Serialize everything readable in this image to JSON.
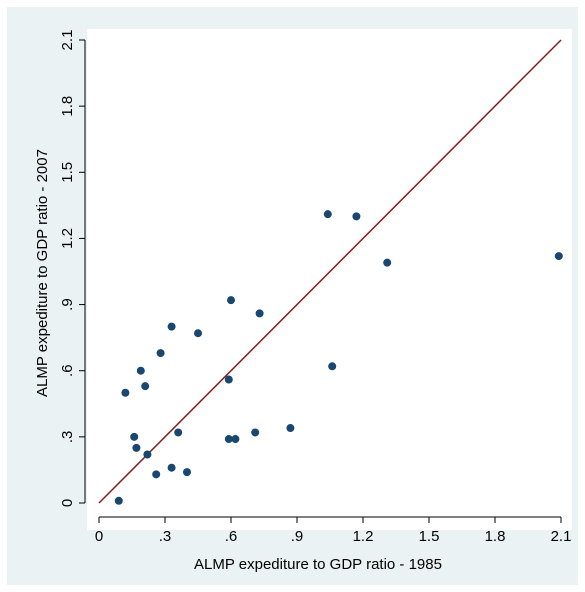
{
  "chart_data": {
    "type": "scatter",
    "title": "",
    "xlabel": "ALMP expediture to GDP ratio - 1985",
    "ylabel": "ALMP expediture to GDP ratio - 2007",
    "xlim": [
      0,
      2.1
    ],
    "ylim": [
      0,
      2.1
    ],
    "xticks": [
      0,
      0.3,
      0.6,
      0.9,
      1.2,
      1.5,
      1.8,
      2.1
    ],
    "xtick_labels": [
      "0",
      ".3",
      ".6",
      ".9",
      "1.2",
      "1.5",
      "1.8",
      "2.1"
    ],
    "yticks": [
      0,
      0.3,
      0.6,
      0.9,
      1.2,
      1.5,
      1.8,
      2.1
    ],
    "ytick_labels": [
      "0",
      ".3",
      ".6",
      ".9",
      "1.2",
      "1.5",
      "1.8",
      "2.1"
    ],
    "grid": false,
    "reference_line": {
      "type": "45-degree",
      "from": [
        0,
        0
      ],
      "to": [
        2.1,
        2.1
      ],
      "color": "#8b1a1a"
    },
    "marker_color": "#1a476f",
    "points": [
      {
        "x": 0.09,
        "y": 0.01
      },
      {
        "x": 0.12,
        "y": 0.5
      },
      {
        "x": 0.16,
        "y": 0.3
      },
      {
        "x": 0.17,
        "y": 0.25
      },
      {
        "x": 0.19,
        "y": 0.6
      },
      {
        "x": 0.21,
        "y": 0.53
      },
      {
        "x": 0.22,
        "y": 0.22
      },
      {
        "x": 0.26,
        "y": 0.13
      },
      {
        "x": 0.28,
        "y": 0.68
      },
      {
        "x": 0.33,
        "y": 0.8
      },
      {
        "x": 0.33,
        "y": 0.16
      },
      {
        "x": 0.36,
        "y": 0.32
      },
      {
        "x": 0.4,
        "y": 0.14
      },
      {
        "x": 0.45,
        "y": 0.77
      },
      {
        "x": 0.59,
        "y": 0.56
      },
      {
        "x": 0.59,
        "y": 0.29
      },
      {
        "x": 0.6,
        "y": 0.92
      },
      {
        "x": 0.62,
        "y": 0.29
      },
      {
        "x": 0.71,
        "y": 0.32
      },
      {
        "x": 0.73,
        "y": 0.86
      },
      {
        "x": 0.87,
        "y": 0.34
      },
      {
        "x": 1.04,
        "y": 1.31
      },
      {
        "x": 1.06,
        "y": 0.62
      },
      {
        "x": 1.17,
        "y": 1.3
      },
      {
        "x": 1.31,
        "y": 1.09
      },
      {
        "x": 2.09,
        "y": 1.12
      }
    ]
  }
}
